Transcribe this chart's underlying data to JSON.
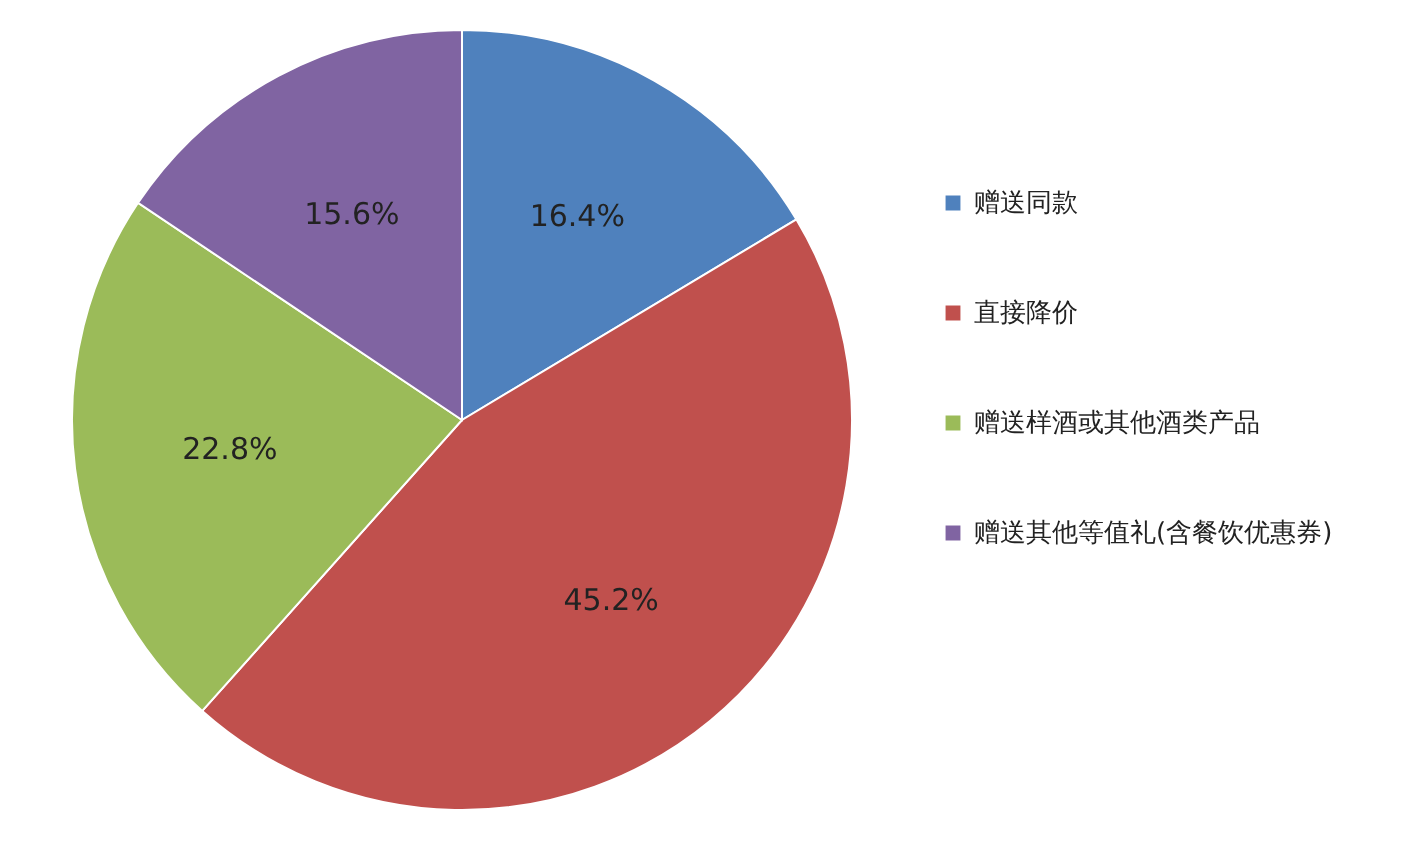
{
  "chart_data": {
    "type": "pie",
    "categories": [
      "赠送同款",
      "直接降价",
      "赠送样酒或其他酒类产品",
      "赠送其他等值礼(含餐饮优惠券)"
    ],
    "values": [
      16.4,
      45.2,
      22.8,
      15.6
    ],
    "colors": [
      "#4f81bd",
      "#c0504d",
      "#9bbb59",
      "#8064a2"
    ],
    "value_labels": [
      "16.4%",
      "45.2%",
      "22.8%",
      "15.6%"
    ],
    "legend": "right"
  }
}
